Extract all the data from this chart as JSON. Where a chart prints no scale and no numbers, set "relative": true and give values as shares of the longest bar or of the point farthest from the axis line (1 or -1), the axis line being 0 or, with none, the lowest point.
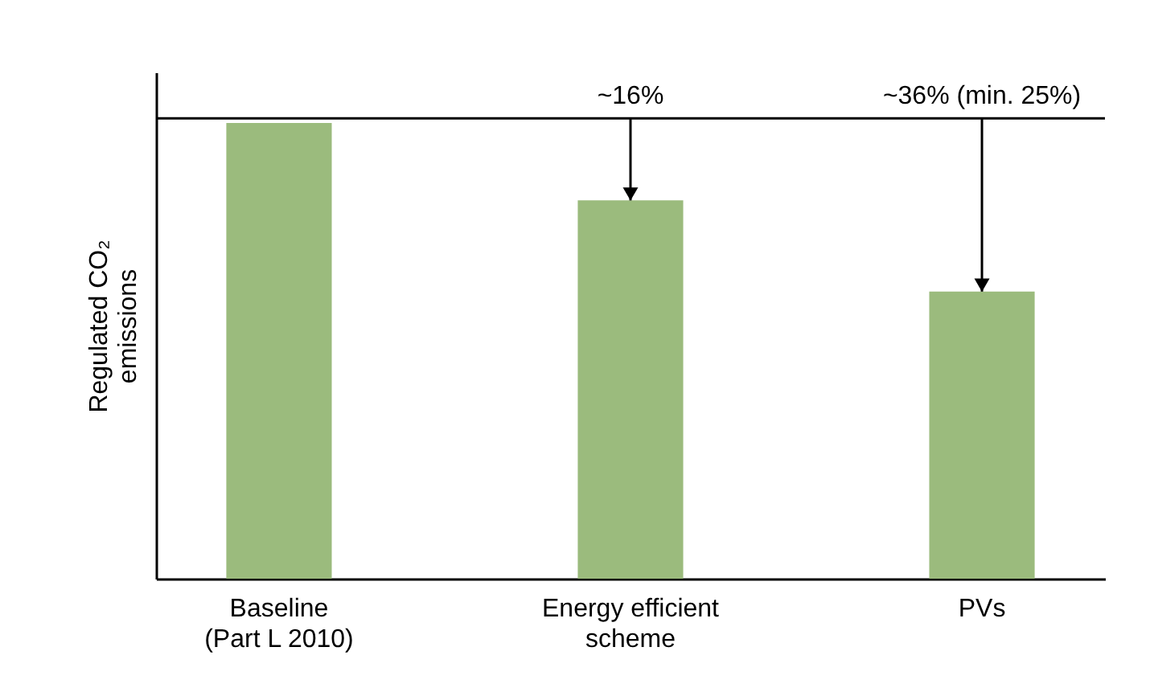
{
  "chart_data": {
    "type": "bar",
    "relative": true,
    "ylabel": "Regulated CO₂\nemissions",
    "categories": [
      "Baseline\n(Part L 2010)",
      "Energy efficient\nscheme",
      "PVs"
    ],
    "values": [
      1,
      0.83,
      0.63
    ],
    "color": "#9bbb7d",
    "ref_lines": [
      {
        "axis": "y",
        "value": 1.01,
        "color": "#000000"
      }
    ],
    "annotations": [
      {
        "text": "~16%",
        "x": "Energy efficient\nscheme",
        "y": 1.01
      },
      {
        "text": "~36% (min. 25%)",
        "x": "PVs",
        "y": 1.01
      }
    ],
    "grid": false
  }
}
